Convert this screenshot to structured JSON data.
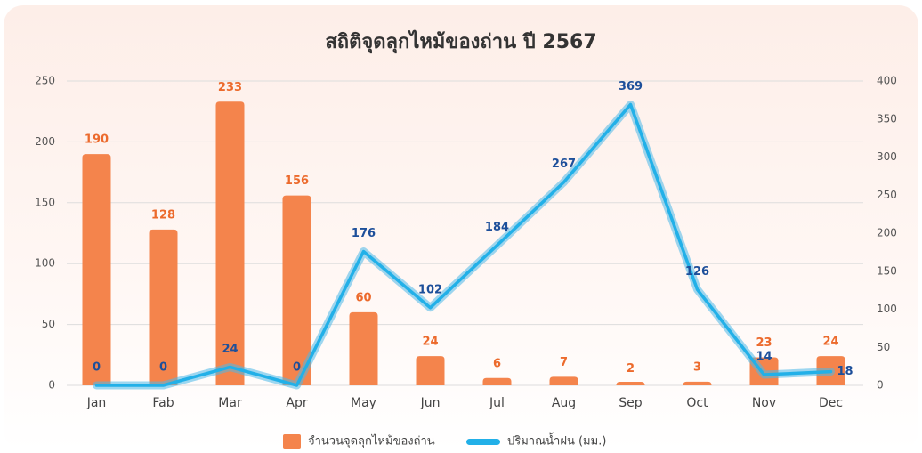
{
  "chart_data": {
    "type": "bar-line",
    "title": "สถิติจุดลุกไหม้ของถ่าน ปี 2567",
    "categories": [
      "Jan",
      "Fab",
      "Mar",
      "Apr",
      "May",
      "Jun",
      "Jul",
      "Aug",
      "Sep",
      "Oct",
      "Nov",
      "Dec"
    ],
    "series": [
      {
        "name": "จำนวนจุดลุกไหม้ของถ่าน",
        "color": "#f4844c",
        "type": "bar",
        "values": [
          190,
          128,
          233,
          156,
          60,
          24,
          6,
          7,
          2,
          3,
          23,
          24
        ]
      },
      {
        "name": "ปริมาณน้ำฝน (มม.)",
        "color": "#4db8e8",
        "type": "line",
        "axis": "y2",
        "values": [
          0,
          0,
          24,
          0,
          176,
          102,
          184,
          267,
          369,
          126,
          14,
          18
        ]
      }
    ],
    "ylim": [
      0,
      250
    ],
    "yticks": [
      0,
      50,
      100,
      150,
      200,
      250
    ],
    "y2lim": [
      0,
      400
    ],
    "y2ticks": [
      0,
      50,
      100,
      150,
      200,
      250,
      300,
      350,
      400
    ],
    "grid": true
  }
}
